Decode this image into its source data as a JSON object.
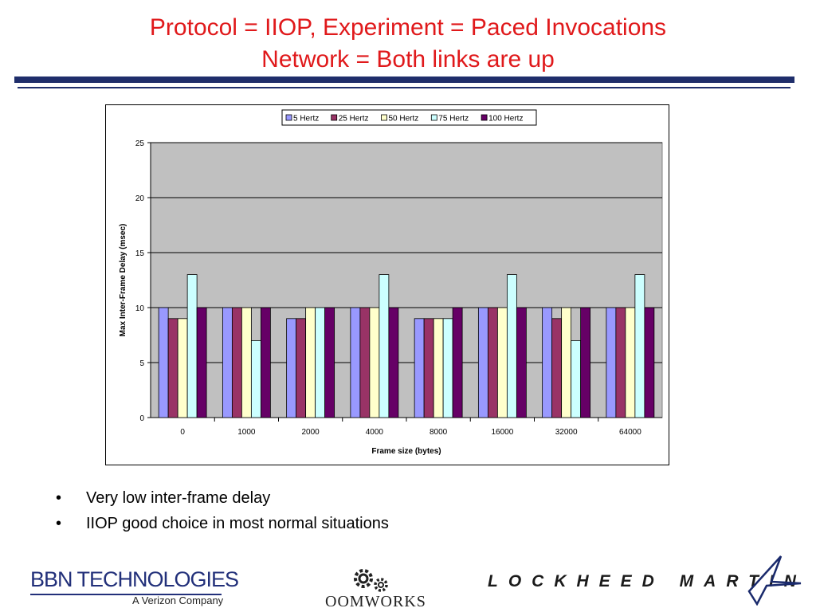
{
  "slide": {
    "title_line1": "Protocol = IIOP, Experiment = Paced Invocations",
    "title_line2": "Network = Both links are up",
    "title_color": "#e0191b",
    "rule_color": "#1f2e6b",
    "bullets": [
      "Very low inter-frame delay",
      "IIOP good choice in most normal situations"
    ],
    "bullet_symbol": "•",
    "logos": {
      "bbn_name": "BBN TECHNOLOGIES",
      "bbn_sub": "A Verizon Company",
      "oom_name": "OOMWORKS",
      "oom_icon": "gears-icon",
      "lm_name": "LOCKHEED MARTIN",
      "lm_icon": "star-icon"
    }
  },
  "chart_data": {
    "type": "bar",
    "title": "",
    "xlabel": "Frame size (bytes)",
    "ylabel": "Max Inter-Frame Delay (msec)",
    "categories": [
      "0",
      "1000",
      "2000",
      "4000",
      "8000",
      "16000",
      "32000",
      "64000"
    ],
    "ylim": [
      0,
      25
    ],
    "yticks": [
      0,
      5,
      10,
      15,
      20,
      25
    ],
    "grid": true,
    "plot_background": "#c0c0c0",
    "legend_position": "top",
    "series": [
      {
        "name": "5 Hertz",
        "color": "#9999ff",
        "values": [
          10,
          10,
          9,
          10,
          9,
          10,
          10,
          10
        ]
      },
      {
        "name": "25 Hertz",
        "color": "#993366",
        "values": [
          9,
          10,
          9,
          10,
          9,
          10,
          9,
          10
        ]
      },
      {
        "name": "50 Hertz",
        "color": "#ffffcc",
        "values": [
          9,
          10,
          10,
          10,
          9,
          10,
          10,
          10
        ]
      },
      {
        "name": "75 Hertz",
        "color": "#ccffff",
        "values": [
          13,
          7,
          10,
          13,
          9,
          13,
          7,
          13
        ]
      },
      {
        "name": "100 Hertz",
        "color": "#660066",
        "values": [
          10,
          10,
          10,
          10,
          10,
          10,
          10,
          10
        ]
      }
    ]
  }
}
